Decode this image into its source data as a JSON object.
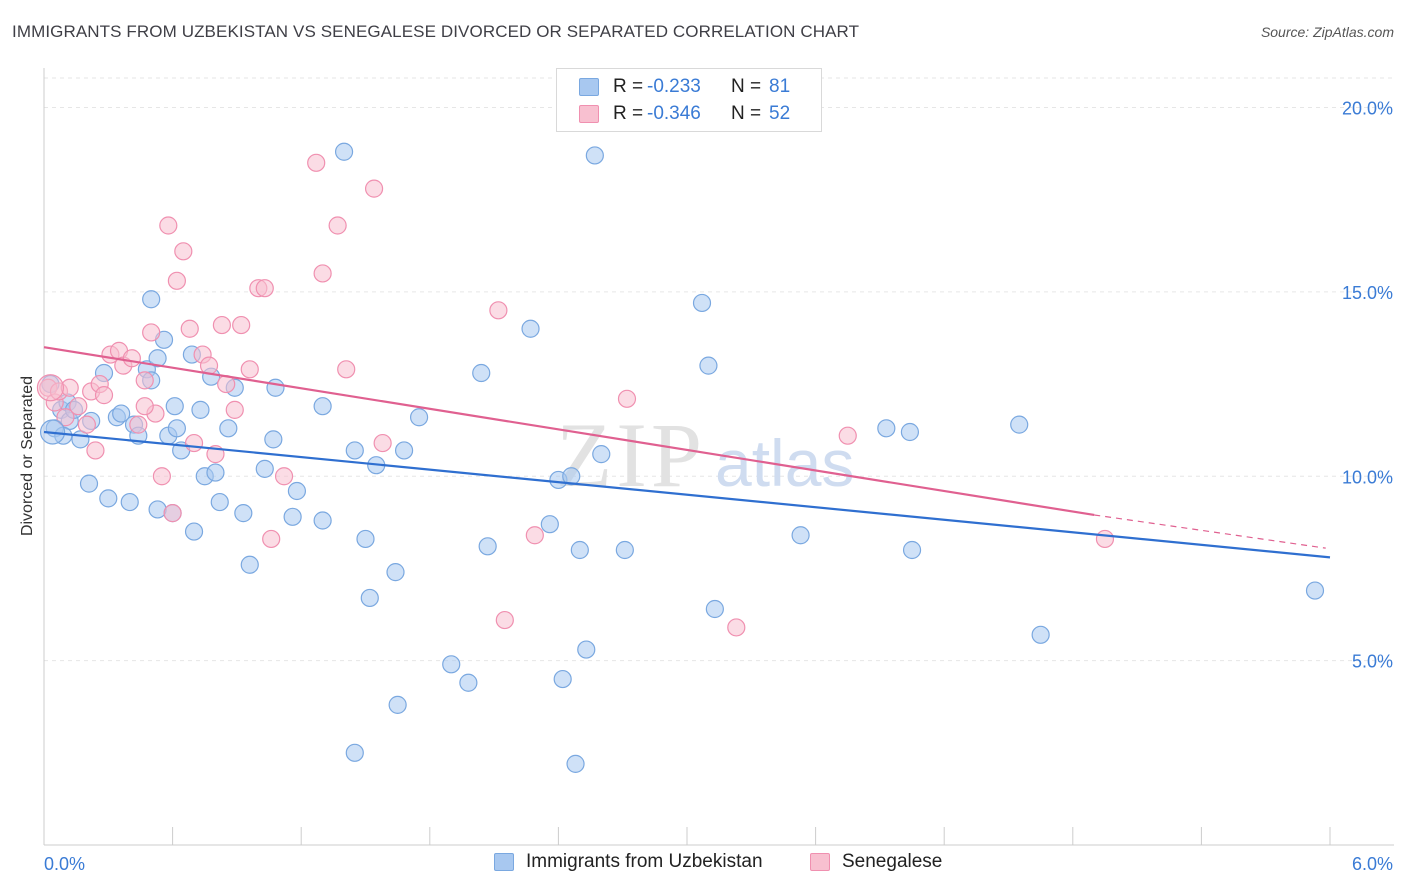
{
  "header": {
    "title": "IMMIGRANTS FROM UZBEKISTAN VS SENEGALESE DIVORCED OR SEPARATED CORRELATION CHART",
    "source": "Source: ZipAtlas.com"
  },
  "watermark": {
    "zip": "ZIP",
    "atlas": "atlas"
  },
  "legend": {
    "rows": [
      {
        "r_label": "R =",
        "r_value": "-0.233",
        "n_label": "N =",
        "n_value": "81",
        "color": "#a8c8f0",
        "stroke": "#7aa8e0"
      },
      {
        "r_label": "R =",
        "r_value": "-0.346",
        "n_label": "N =",
        "n_value": "52",
        "color": "#f8c0d0",
        "stroke": "#f090b0"
      }
    ]
  },
  "bottom_legend": {
    "items": [
      {
        "label": "Immigrants from Uzbekistan",
        "color": "#a8c8f0",
        "stroke": "#7aa8e0"
      },
      {
        "label": "Senegalese",
        "color": "#f8c0d0",
        "stroke": "#f090b0"
      }
    ]
  },
  "chart_data": {
    "type": "scatter",
    "ylabel": "Divorced or Separated",
    "xlim": [
      0,
      6
    ],
    "ylim": [
      0,
      20.8
    ],
    "x_tick_labels": {
      "left": "0.0%",
      "right": "6.0%"
    },
    "y_ticks": [
      {
        "value": 5,
        "label": "5.0%"
      },
      {
        "value": 10,
        "label": "10.0%"
      },
      {
        "value": 15,
        "label": "15.0%"
      },
      {
        "value": 20,
        "label": "20.0%"
      }
    ],
    "grid": true,
    "series": [
      {
        "name": "Immigrants from Uzbekistan",
        "color": "#7aa8e0",
        "fill": "#a8c8f0",
        "line_color": "#2f6fd0",
        "trend": {
          "x0": 0,
          "y0": 11.2,
          "x1": 6,
          "y1": 7.8
        },
        "points": [
          [
            0.03,
            12.5
          ],
          [
            0.05,
            11.3
          ],
          [
            0.08,
            11.8
          ],
          [
            0.11,
            12.0
          ],
          [
            0.12,
            11.5
          ],
          [
            0.09,
            11.1
          ],
          [
            0.14,
            11.8
          ],
          [
            0.17,
            11.0
          ],
          [
            0.22,
            11.5
          ],
          [
            0.28,
            12.8
          ],
          [
            0.34,
            11.6
          ],
          [
            0.36,
            11.7
          ],
          [
            0.42,
            11.4
          ],
          [
            0.48,
            12.9
          ],
          [
            0.5,
            12.6
          ],
          [
            0.5,
            14.8
          ],
          [
            0.53,
            13.2
          ],
          [
            0.56,
            13.7
          ],
          [
            0.58,
            11.1
          ],
          [
            0.62,
            11.3
          ],
          [
            0.64,
            10.7
          ],
          [
            0.69,
            13.3
          ],
          [
            0.73,
            11.8
          ],
          [
            0.75,
            10.0
          ],
          [
            0.8,
            10.1
          ],
          [
            0.86,
            11.3
          ],
          [
            0.89,
            12.4
          ],
          [
            0.93,
            9.0
          ],
          [
            1.03,
            10.2
          ],
          [
            1.07,
            11.0
          ],
          [
            1.18,
            9.6
          ],
          [
            1.3,
            8.8
          ],
          [
            1.4,
            18.8
          ],
          [
            1.45,
            10.7
          ],
          [
            1.5,
            8.3
          ],
          [
            1.55,
            10.3
          ],
          [
            1.68,
            10.7
          ],
          [
            1.64,
            7.4
          ],
          [
            1.75,
            11.6
          ],
          [
            2.04,
            12.8
          ],
          [
            2.07,
            8.1
          ],
          [
            2.27,
            14.0
          ],
          [
            2.36,
            8.7
          ],
          [
            2.4,
            9.9
          ],
          [
            2.46,
            10.0
          ],
          [
            2.5,
            8.0
          ],
          [
            2.57,
            18.7
          ],
          [
            2.6,
            10.6
          ],
          [
            2.71,
            8.0
          ],
          [
            3.07,
            14.7
          ],
          [
            3.1,
            13.0
          ],
          [
            3.13,
            6.4
          ],
          [
            3.53,
            8.4
          ],
          [
            3.93,
            11.3
          ],
          [
            4.04,
            11.2
          ],
          [
            4.05,
            8.0
          ],
          [
            4.55,
            11.4
          ],
          [
            4.65,
            5.7
          ],
          [
            5.93,
            6.9
          ],
          [
            0.96,
            7.6
          ],
          [
            1.08,
            12.4
          ],
          [
            1.3,
            11.9
          ],
          [
            1.45,
            2.5
          ],
          [
            2.53,
            5.3
          ],
          [
            2.42,
            4.5
          ],
          [
            2.48,
            2.2
          ],
          [
            1.9,
            4.9
          ],
          [
            1.98,
            4.4
          ],
          [
            1.65,
            3.8
          ],
          [
            1.52,
            6.7
          ],
          [
            0.6,
            9.0
          ],
          [
            0.7,
            8.5
          ],
          [
            0.82,
            9.3
          ],
          [
            1.16,
            8.9
          ],
          [
            0.4,
            9.3
          ],
          [
            0.3,
            9.4
          ],
          [
            0.21,
            9.8
          ],
          [
            0.44,
            11.1
          ],
          [
            0.61,
            11.9
          ],
          [
            0.53,
            9.1
          ],
          [
            0.78,
            12.7
          ]
        ]
      },
      {
        "name": "Senegalese",
        "color": "#f090b0",
        "fill": "#f8c0d0",
        "line_color": "#e06090",
        "trend": {
          "x0": 0,
          "y0": 13.5,
          "x1": 4.9,
          "y1": 8.95,
          "dash_x1": 5.98,
          "dash_y1": 8.05
        },
        "points": [
          [
            0.02,
            12.4
          ],
          [
            0.05,
            12.0
          ],
          [
            0.07,
            12.3
          ],
          [
            0.1,
            11.6
          ],
          [
            0.12,
            12.4
          ],
          [
            0.16,
            11.9
          ],
          [
            0.2,
            11.4
          ],
          [
            0.22,
            12.3
          ],
          [
            0.26,
            12.5
          ],
          [
            0.28,
            12.2
          ],
          [
            0.31,
            13.3
          ],
          [
            0.35,
            13.4
          ],
          [
            0.37,
            13.0
          ],
          [
            0.41,
            13.2
          ],
          [
            0.44,
            11.4
          ],
          [
            0.47,
            12.6
          ],
          [
            0.5,
            13.9
          ],
          [
            0.52,
            11.7
          ],
          [
            0.55,
            10.0
          ],
          [
            0.58,
            16.8
          ],
          [
            0.62,
            15.3
          ],
          [
            0.65,
            16.1
          ],
          [
            0.68,
            14.0
          ],
          [
            0.7,
            10.9
          ],
          [
            0.74,
            13.3
          ],
          [
            0.77,
            13.0
          ],
          [
            0.8,
            10.6
          ],
          [
            0.83,
            14.1
          ],
          [
            0.85,
            12.5
          ],
          [
            0.89,
            11.8
          ],
          [
            0.92,
            14.1
          ],
          [
            0.96,
            12.9
          ],
          [
            1.0,
            15.1
          ],
          [
            1.03,
            15.1
          ],
          [
            1.06,
            8.3
          ],
          [
            1.12,
            10.0
          ],
          [
            1.27,
            18.5
          ],
          [
            1.3,
            15.5
          ],
          [
            1.37,
            16.8
          ],
          [
            1.41,
            12.9
          ],
          [
            1.54,
            17.8
          ],
          [
            1.58,
            10.9
          ],
          [
            2.12,
            14.5
          ],
          [
            2.15,
            6.1
          ],
          [
            2.29,
            8.4
          ],
          [
            2.72,
            12.1
          ],
          [
            3.23,
            5.9
          ],
          [
            3.75,
            11.1
          ],
          [
            4.95,
            8.3
          ],
          [
            0.47,
            11.9
          ],
          [
            0.24,
            10.7
          ],
          [
            0.6,
            9.0
          ]
        ]
      }
    ]
  }
}
